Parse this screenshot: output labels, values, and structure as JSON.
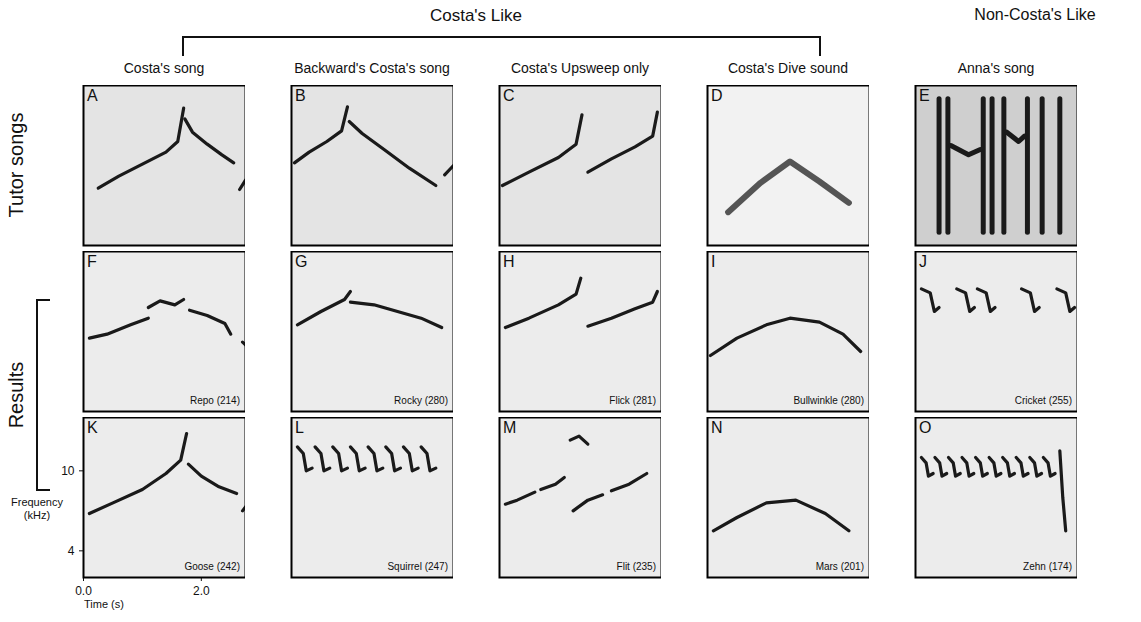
{
  "headers": {
    "group": "Costa's Like",
    "other": "Non-Costa's Like"
  },
  "column_titles": [
    "Costa's song",
    "Backward's Costa's song",
    "Costa's Upsweep only",
    "Costa's Dive sound",
    "Anna's song"
  ],
  "row_labels": [
    "Tutor songs",
    "Results"
  ],
  "axes": {
    "x_label": "Time (s)",
    "y_label": "Frequency (kHz)",
    "xlim": [
      0,
      2.75
    ],
    "ylim": [
      2,
      14
    ],
    "xticks": [
      0,
      2
    ],
    "yticks": [
      4,
      10
    ]
  },
  "chart_data": [
    {
      "type": "line",
      "letter": "A",
      "color": "#1a1a1a",
      "tick_labels": false,
      "series": [
        {
          "x": [
            0.25,
            0.6,
            1.0,
            1.4,
            1.6,
            1.7
          ],
          "values": [
            6.3,
            7.2,
            8.1,
            9.0,
            9.8,
            12.3
          ]
        },
        {
          "x": [
            1.72,
            1.85,
            2.1,
            2.35,
            2.55
          ],
          "values": [
            11.5,
            10.5,
            9.6,
            8.8,
            8.2
          ]
        },
        {
          "x": [
            2.65,
            2.75
          ],
          "values": [
            6.2,
            6.9
          ]
        }
      ]
    },
    {
      "type": "line",
      "letter": "B",
      "color": "#1a1a1a",
      "tick_labels": false,
      "series": [
        {
          "x": [
            0.05,
            0.3,
            0.6,
            0.85,
            0.95
          ],
          "values": [
            8.2,
            9.0,
            9.8,
            10.6,
            12.4
          ]
        },
        {
          "x": [
            0.98,
            1.2,
            1.6,
            2.0,
            2.45
          ],
          "values": [
            11.3,
            10.4,
            9.1,
            7.8,
            6.5
          ]
        },
        {
          "x": [
            2.6,
            2.75
          ],
          "values": [
            7.3,
            8.0
          ]
        }
      ]
    },
    {
      "type": "line",
      "letter": "C",
      "color": "#1a1a1a",
      "tick_labels": false,
      "series": [
        {
          "x": [
            0.05,
            0.5,
            1.0,
            1.3,
            1.4
          ],
          "values": [
            6.5,
            7.5,
            8.6,
            9.6,
            11.8
          ]
        },
        {
          "x": [
            1.5,
            1.9,
            2.3,
            2.6,
            2.68
          ],
          "values": [
            7.5,
            8.5,
            9.4,
            10.2,
            12.0
          ]
        }
      ]
    },
    {
      "type": "line",
      "letter": "D",
      "color": "#555555",
      "tick_labels": false,
      "series": [
        {
          "x": [
            0.35,
            0.9,
            1.4,
            1.9,
            2.4
          ],
          "values": [
            4.5,
            6.7,
            8.3,
            6.8,
            5.2
          ]
        }
      ]
    },
    {
      "type": "line",
      "letter": "E",
      "color": "#1a1a1a",
      "tick_labels": false,
      "series": [
        {
          "x": [
            0.4,
            0.4
          ],
          "values": [
            3,
            13
          ]
        },
        {
          "x": [
            0.55,
            0.55
          ],
          "values": [
            3,
            13
          ]
        },
        {
          "x": [
            1.15,
            1.15
          ],
          "values": [
            3,
            13
          ]
        },
        {
          "x": [
            1.3,
            1.3
          ],
          "values": [
            3,
            13
          ]
        },
        {
          "x": [
            1.5,
            1.5
          ],
          "values": [
            3,
            13
          ]
        },
        {
          "x": [
            1.9,
            1.9
          ],
          "values": [
            3,
            13
          ]
        },
        {
          "x": [
            2.15,
            2.15
          ],
          "values": [
            3,
            13
          ]
        },
        {
          "x": [
            2.45,
            2.45
          ],
          "values": [
            3,
            13
          ]
        },
        {
          "x": [
            0.6,
            0.9,
            1.1
          ],
          "values": [
            9.5,
            8.8,
            9.2
          ]
        },
        {
          "x": [
            1.55,
            1.75,
            1.85
          ],
          "values": [
            10.5,
            9.8,
            10.2
          ]
        }
      ]
    },
    {
      "type": "line",
      "letter": "F",
      "label": "Repo (214)",
      "color": "#1a1a1a",
      "tick_labels": false,
      "series": [
        {
          "x": [
            0.1,
            0.4,
            0.8,
            1.1
          ],
          "values": [
            7.5,
            7.8,
            8.5,
            9.0
          ]
        },
        {
          "x": [
            1.1,
            1.3,
            1.55,
            1.7
          ],
          "values": [
            9.8,
            10.3,
            10.0,
            10.4
          ]
        },
        {
          "x": [
            1.8,
            2.1,
            2.4,
            2.5
          ],
          "values": [
            9.6,
            9.2,
            8.6,
            7.8
          ]
        },
        {
          "x": [
            2.7,
            2.75
          ],
          "values": [
            7.2,
            7.0
          ]
        }
      ]
    },
    {
      "type": "line",
      "letter": "G",
      "label": "Rocky (280)",
      "color": "#1a1a1a",
      "tick_labels": false,
      "series": [
        {
          "x": [
            0.1,
            0.5,
            0.9,
            1.0
          ],
          "values": [
            8.5,
            9.5,
            10.4,
            11.0
          ]
        },
        {
          "x": [
            1.0,
            1.4,
            1.8,
            2.2,
            2.55
          ],
          "values": [
            10.2,
            10.0,
            9.5,
            9.0,
            8.3
          ]
        }
      ]
    },
    {
      "type": "line",
      "letter": "H",
      "label": "Flick (281)",
      "color": "#1a1a1a",
      "tick_labels": false,
      "series": [
        {
          "x": [
            0.1,
            0.5,
            1.0,
            1.3,
            1.38
          ],
          "values": [
            8.3,
            9.0,
            10.0,
            10.8,
            12.0
          ]
        },
        {
          "x": [
            1.5,
            1.9,
            2.3,
            2.6,
            2.68
          ],
          "values": [
            8.4,
            9.0,
            9.7,
            10.2,
            11.0
          ]
        }
      ]
    },
    {
      "type": "line",
      "letter": "I",
      "label": "Bullwinkle (280)",
      "color": "#1a1a1a",
      "tick_labels": false,
      "series": [
        {
          "x": [
            0.05,
            0.5,
            1.0,
            1.4,
            1.9,
            2.3,
            2.6
          ],
          "values": [
            6.2,
            7.5,
            8.5,
            9.0,
            8.7,
            7.8,
            6.5
          ]
        }
      ]
    },
    {
      "type": "line",
      "letter": "J",
      "label": "Cricket (255)",
      "color": "#1a1a1a",
      "tick_labels": false,
      "series": [
        {
          "x": [
            0.1,
            0.25,
            0.32,
            0.4
          ],
          "values": [
            11.2,
            10.9,
            9.5,
            9.8
          ]
        },
        {
          "x": [
            0.7,
            0.85,
            0.92,
            1.0
          ],
          "values": [
            11.2,
            10.9,
            9.5,
            9.8
          ]
        },
        {
          "x": [
            1.05,
            1.2,
            1.27,
            1.35
          ],
          "values": [
            11.2,
            10.9,
            9.5,
            9.8
          ]
        },
        {
          "x": [
            1.8,
            1.95,
            2.02,
            2.1
          ],
          "values": [
            11.2,
            10.9,
            9.5,
            9.8
          ]
        },
        {
          "x": [
            2.4,
            2.55,
            2.62,
            2.7
          ],
          "values": [
            11.2,
            10.9,
            9.5,
            9.8
          ]
        }
      ]
    },
    {
      "type": "line",
      "letter": "K",
      "label": "Goose (242)",
      "color": "#1a1a1a",
      "series": [
        {
          "x": [
            0.1,
            0.5,
            1.0,
            1.4,
            1.65,
            1.75
          ],
          "values": [
            6.8,
            7.6,
            8.6,
            9.8,
            10.8,
            12.8
          ]
        },
        {
          "x": [
            1.78,
            2.0,
            2.3,
            2.6
          ],
          "values": [
            10.5,
            9.6,
            8.8,
            8.3
          ]
        },
        {
          "x": [
            2.7,
            2.75
          ],
          "values": [
            7.0,
            7.3
          ]
        }
      ]
    },
    {
      "type": "line",
      "letter": "L",
      "label": "Squirrel (247)",
      "color": "#1a1a1a",
      "tick_labels": false,
      "series": [
        {
          "x": [
            0.1,
            0.2,
            0.25,
            0.35
          ],
          "values": [
            11.8,
            11.3,
            10.0,
            10.2
          ]
        },
        {
          "x": [
            0.4,
            0.5,
            0.55,
            0.65
          ],
          "values": [
            11.8,
            11.3,
            10.0,
            10.2
          ]
        },
        {
          "x": [
            0.7,
            0.8,
            0.85,
            0.95
          ],
          "values": [
            11.8,
            11.3,
            10.0,
            10.2
          ]
        },
        {
          "x": [
            1.0,
            1.1,
            1.15,
            1.25
          ],
          "values": [
            11.8,
            11.3,
            10.0,
            10.2
          ]
        },
        {
          "x": [
            1.3,
            1.4,
            1.45,
            1.55
          ],
          "values": [
            11.8,
            11.3,
            10.0,
            10.2
          ]
        },
        {
          "x": [
            1.6,
            1.7,
            1.75,
            1.85
          ],
          "values": [
            11.8,
            11.3,
            10.0,
            10.2
          ]
        },
        {
          "x": [
            1.9,
            2.0,
            2.05,
            2.15
          ],
          "values": [
            11.8,
            11.3,
            10.0,
            10.2
          ]
        },
        {
          "x": [
            2.2,
            2.3,
            2.35,
            2.45
          ],
          "values": [
            11.8,
            11.3,
            10.0,
            10.2
          ]
        }
      ]
    },
    {
      "type": "line",
      "letter": "M",
      "label": "Flit (235)",
      "color": "#1a1a1a",
      "tick_labels": false,
      "series": [
        {
          "x": [
            0.1,
            0.3,
            0.6
          ],
          "values": [
            7.5,
            7.8,
            8.4
          ]
        },
        {
          "x": [
            0.7,
            0.95,
            1.1
          ],
          "values": [
            8.6,
            9.0,
            9.5
          ]
        },
        {
          "x": [
            1.2,
            1.35,
            1.5
          ],
          "values": [
            12.3,
            12.6,
            12.0
          ]
        },
        {
          "x": [
            1.25,
            1.5,
            1.75
          ],
          "values": [
            7.0,
            7.8,
            8.2
          ]
        },
        {
          "x": [
            1.9,
            2.2,
            2.5
          ],
          "values": [
            8.5,
            9.0,
            9.8
          ]
        }
      ]
    },
    {
      "type": "line",
      "letter": "N",
      "label": "Mars (201)",
      "color": "#1a1a1a",
      "tick_labels": false,
      "series": [
        {
          "x": [
            0.1,
            0.5,
            1.0,
            1.5,
            2.0,
            2.4
          ],
          "values": [
            5.5,
            6.5,
            7.6,
            7.8,
            6.8,
            5.5
          ]
        }
      ]
    },
    {
      "type": "line",
      "letter": "O",
      "label": "Zehn (174)",
      "color": "#1a1a1a",
      "tick_labels": false,
      "series": [
        {
          "x": [
            0.1,
            0.18,
            0.22,
            0.3
          ],
          "values": [
            11.0,
            10.6,
            9.6,
            9.8
          ]
        },
        {
          "x": [
            0.33,
            0.41,
            0.45,
            0.53
          ],
          "values": [
            11.0,
            10.6,
            9.6,
            9.8
          ]
        },
        {
          "x": [
            0.56,
            0.64,
            0.68,
            0.76
          ],
          "values": [
            11.0,
            10.6,
            9.6,
            9.8
          ]
        },
        {
          "x": [
            0.79,
            0.87,
            0.91,
            0.99
          ],
          "values": [
            11.0,
            10.6,
            9.6,
            9.8
          ]
        },
        {
          "x": [
            1.02,
            1.1,
            1.14,
            1.22
          ],
          "values": [
            11.0,
            10.6,
            9.6,
            9.8
          ]
        },
        {
          "x": [
            1.25,
            1.33,
            1.37,
            1.45
          ],
          "values": [
            11.0,
            10.6,
            9.6,
            9.8
          ]
        },
        {
          "x": [
            1.48,
            1.56,
            1.6,
            1.68
          ],
          "values": [
            11.0,
            10.6,
            9.6,
            9.8
          ]
        },
        {
          "x": [
            1.71,
            1.79,
            1.83,
            1.91
          ],
          "values": [
            11.0,
            10.6,
            9.6,
            9.8
          ]
        },
        {
          "x": [
            1.94,
            2.02,
            2.06,
            2.14
          ],
          "values": [
            11.0,
            10.6,
            9.6,
            9.8
          ]
        },
        {
          "x": [
            2.17,
            2.25,
            2.29,
            2.37
          ],
          "values": [
            11.0,
            10.6,
            9.6,
            9.8
          ]
        },
        {
          "x": [
            2.45,
            2.5,
            2.55
          ],
          "values": [
            11.5,
            8.0,
            5.5
          ]
        }
      ]
    }
  ]
}
